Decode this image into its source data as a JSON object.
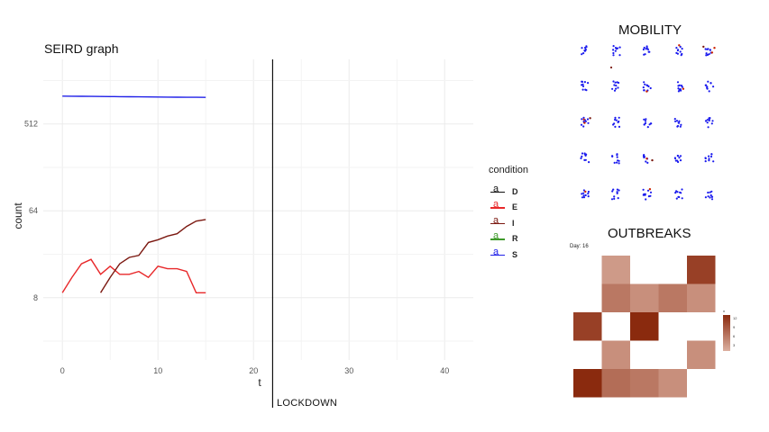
{
  "seird": {
    "title": "SEIRD graph",
    "lockdown_label": "LOCKDOWN",
    "legend_glyph": "a"
  },
  "chart_data": [
    {
      "type": "line",
      "title": "SEIRD graph",
      "xlabel": "t",
      "ylabel": "count",
      "xlim": [
        -2,
        43
      ],
      "ylim": [
        1.8,
        2400
      ],
      "y_scale": "log2",
      "x_ticks": [
        0,
        10,
        20,
        30,
        40
      ],
      "y_ticks": [
        8,
        64,
        512
      ],
      "grid": true,
      "legend_title": "condition",
      "legend_position": "right",
      "vline_x": 22,
      "series": [
        {
          "name": "D",
          "color": "#111111",
          "x": [],
          "y": []
        },
        {
          "name": "E",
          "color": "#e8282a",
          "x": [
            0,
            1,
            2,
            3,
            4,
            5,
            6,
            7,
            8,
            9,
            10,
            11,
            12,
            13,
            14,
            15
          ],
          "y": [
            9,
            13,
            18,
            20,
            14,
            17,
            14,
            14,
            15,
            13,
            17,
            16,
            16,
            15,
            9,
            9
          ]
        },
        {
          "name": "I",
          "color": "#7b1810",
          "x": [
            4,
            5,
            6,
            7,
            8,
            9,
            10,
            11,
            12,
            13,
            14,
            15
          ],
          "y": [
            9,
            13,
            18,
            21,
            22,
            30,
            32,
            35,
            37,
            44,
            50,
            52
          ]
        },
        {
          "name": "R",
          "color": "#3e9a2a",
          "x": [],
          "y": []
        },
        {
          "name": "S",
          "color": "#2020e8",
          "x": [
            0,
            1,
            2,
            3,
            4,
            5,
            6,
            7,
            8,
            9,
            10,
            11,
            12,
            13,
            14,
            15
          ],
          "y": [
            996,
            994,
            992,
            990,
            988,
            986,
            984,
            982,
            980,
            978,
            976,
            974,
            972,
            970,
            968,
            966
          ]
        }
      ]
    },
    {
      "type": "scatter",
      "title": "MOBILITY",
      "grid_layout": "5x5 clusters",
      "colors": {
        "susceptible": "#1a1aee",
        "infected": "#cc2200",
        "other": "#7a1a10"
      }
    },
    {
      "type": "heatmap",
      "title": "OUTBREAKS",
      "subtitle": "Day: 16",
      "legend_title": "n",
      "legend_ticks": [
        3,
        6,
        9,
        12
      ],
      "color_low": "#dcb0a0",
      "color_high": "#8a2a0e",
      "value_range": [
        1,
        13
      ],
      "rows": [
        [
          0,
          3,
          0,
          0,
          11
        ],
        [
          0,
          6,
          4,
          6,
          4
        ],
        [
          11,
          0,
          13,
          0,
          0
        ],
        [
          0,
          4,
          0,
          0,
          4
        ],
        [
          13,
          7,
          6,
          4,
          0
        ]
      ]
    }
  ]
}
